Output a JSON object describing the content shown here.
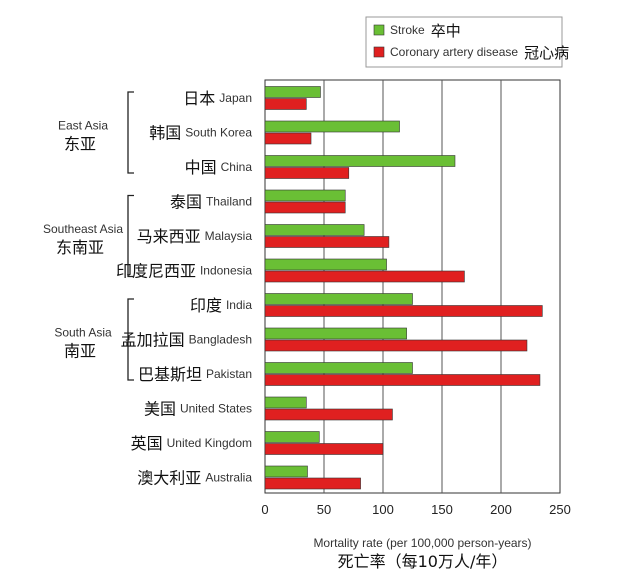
{
  "chart_data": {
    "type": "bar",
    "orientation": "horizontal",
    "categories": [
      {
        "en": "Japan",
        "zh": "日本"
      },
      {
        "en": "South Korea",
        "zh": "韩国"
      },
      {
        "en": "China",
        "zh": "中国"
      },
      {
        "en": "Thailand",
        "zh": "泰国"
      },
      {
        "en": "Malaysia",
        "zh": "马来西亚"
      },
      {
        "en": "Indonesia",
        "zh": "印度尼西亚"
      },
      {
        "en": "India",
        "zh": "印度"
      },
      {
        "en": "Bangladesh",
        "zh": "孟加拉国"
      },
      {
        "en": "Pakistan",
        "zh": "巴基斯坦"
      },
      {
        "en": "United States",
        "zh": "美国"
      },
      {
        "en": "United Kingdom",
        "zh": "英国"
      },
      {
        "en": "Australia",
        "zh": "澳大利亚"
      }
    ],
    "series": [
      {
        "name": "Stroke",
        "name_zh": "卒中",
        "color": "#6abf35",
        "values": [
          47,
          114,
          161,
          68,
          84,
          103,
          125,
          120,
          125,
          35,
          46,
          36
        ]
      },
      {
        "name": "Coronary artery disease",
        "name_zh": "冠心病",
        "color": "#e02020",
        "values": [
          35,
          39,
          71,
          68,
          105,
          169,
          235,
          222,
          233,
          108,
          100,
          81
        ]
      }
    ],
    "groups": [
      {
        "en": "East Asia",
        "zh": "东亚",
        "members": [
          0,
          2
        ]
      },
      {
        "en": "Southeast Asia",
        "zh": "东南亚",
        "members": [
          3,
          5
        ]
      },
      {
        "en": "South Asia",
        "zh": "南亚",
        "members": [
          6,
          8
        ]
      }
    ],
    "xlabel": "Mortality rate (per 100,000 person-years)",
    "xlabel_zh": "死亡率（每10万人/年）",
    "xlim": [
      0,
      250
    ],
    "xticks": [
      0,
      50,
      100,
      150,
      200,
      250
    ],
    "grid": true,
    "legend": "top-right"
  }
}
